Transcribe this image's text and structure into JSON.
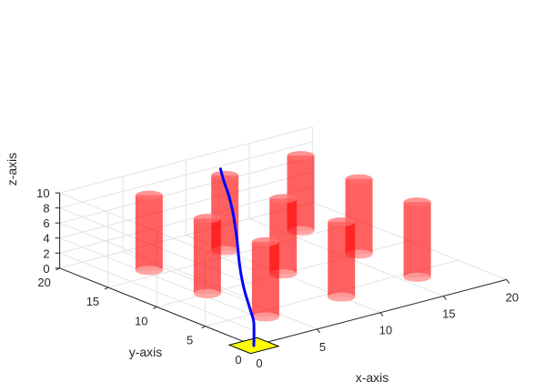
{
  "chart_data": {
    "type": "3d-scene",
    "xlabel": "x-axis",
    "ylabel": "y-axis",
    "zlabel": "z-axis",
    "xlim": [
      0,
      20
    ],
    "ylim": [
      0,
      20
    ],
    "zlim": [
      0,
      10
    ],
    "xticks": [
      "0",
      "5",
      "10",
      "15",
      "20"
    ],
    "yticks": [
      "0",
      "5",
      "10",
      "15",
      "20"
    ],
    "zticks": [
      "0",
      "2",
      "4",
      "6",
      "8",
      "10"
    ],
    "grid": true,
    "obstacles": {
      "shape": "cylinder",
      "color": "#ff0000",
      "radius": 1.4,
      "z_range": [
        0,
        10
      ],
      "centers": [
        [
          4,
          4
        ],
        [
          4,
          10
        ],
        [
          4,
          16
        ],
        [
          10,
          4
        ],
        [
          10,
          10
        ],
        [
          10,
          16
        ],
        [
          16,
          4
        ],
        [
          16,
          10
        ],
        [
          16,
          16
        ]
      ]
    },
    "start_pad": {
      "color": "#ffff00",
      "x": 0,
      "y": 0,
      "z": 0
    },
    "path": {
      "color": "#0000ff",
      "points": [
        [
          0,
          0,
          0
        ],
        [
          0,
          0,
          3
        ],
        [
          0.2,
          0.5,
          3.9
        ],
        [
          0.8,
          1.6,
          4.4
        ],
        [
          1.8,
          3.3,
          4.8
        ],
        [
          3.0,
          5.2,
          5.3
        ],
        [
          4.2,
          7.0,
          6.0
        ],
        [
          5.3,
          8.6,
          6.9
        ],
        [
          6.2,
          10.0,
          8.0
        ],
        [
          7.0,
          11.3,
          9.0
        ],
        [
          7.6,
          12.5,
          10.3
        ],
        [
          8.0,
          13.5,
          11.4
        ],
        [
          8.5,
          14.5,
          12.3
        ]
      ]
    }
  }
}
